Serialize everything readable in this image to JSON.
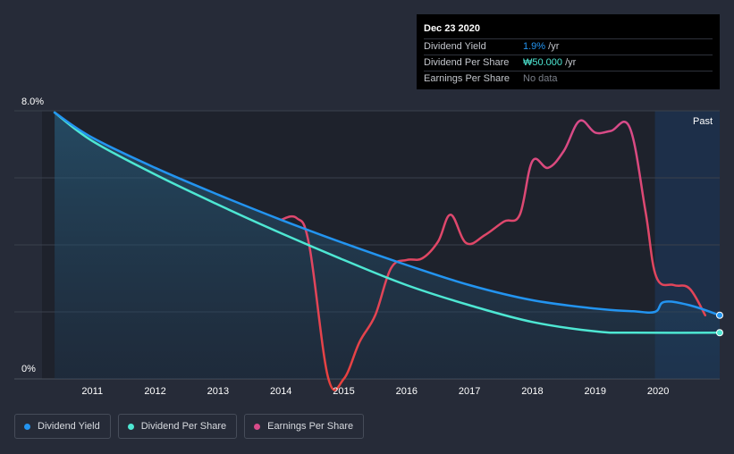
{
  "tooltip": {
    "date": "Dec 23 2020",
    "rows": [
      {
        "label": "Dividend Yield",
        "value": "1.9%",
        "unit": " /yr"
      },
      {
        "label": "Dividend Per Share",
        "value": "₩50.000",
        "unit": " /yr"
      },
      {
        "label": "Earnings Per Share",
        "value": "No data",
        "unit": ""
      }
    ]
  },
  "legend": [
    {
      "label": "Dividend Yield",
      "color": "#2394f0"
    },
    {
      "label": "Dividend Per Share",
      "color": "#4ee7d3"
    },
    {
      "label": "Earnings Per Share",
      "color": "#d84b8a"
    }
  ],
  "colors": {
    "background": "#262b38",
    "plot_dark": "#1e222c",
    "past_region": "#1d2f49",
    "grid": "#3a404c",
    "yield": "#2394f0",
    "dps": "#4ee7d3",
    "eps_low": "#e8413c",
    "eps_high": "#d84b8a"
  },
  "past_label": "Past",
  "chart_data": {
    "type": "line",
    "title": "",
    "xlabel": "",
    "ylabel": "",
    "ylim": [
      0,
      8
    ],
    "xlim": [
      2010.2,
      2020.98
    ],
    "y_tick_labels": [
      "8.0%",
      "0%"
    ],
    "x_ticks": [
      2011,
      2012,
      2013,
      2014,
      2015,
      2016,
      2017,
      2018,
      2019,
      2020
    ],
    "grid": true,
    "past_from": 2019.95,
    "series": [
      {
        "name": "Dividend Yield",
        "x": [
          2010.4,
          2011,
          2012,
          2013,
          2014,
          2015,
          2016,
          2017,
          2018,
          2019,
          2019.6,
          2019.95,
          2020.1,
          2020.5,
          2020.98
        ],
        "values": [
          7.95,
          7.2,
          6.3,
          5.5,
          4.75,
          4.05,
          3.4,
          2.8,
          2.35,
          2.1,
          2.02,
          2.0,
          2.3,
          2.2,
          1.9
        ]
      },
      {
        "name": "Dividend Per Share",
        "x": [
          2010.4,
          2011,
          2012,
          2013,
          2014,
          2015,
          2016,
          2017,
          2018,
          2019,
          2019.6,
          2020.98
        ],
        "values": [
          7.95,
          7.1,
          6.1,
          5.2,
          4.35,
          3.55,
          2.8,
          2.2,
          1.7,
          1.42,
          1.38,
          1.38
        ]
      },
      {
        "name": "Earnings Per Share",
        "x": [
          2014.0,
          2014.25,
          2014.45,
          2014.75,
          2015.0,
          2015.25,
          2015.5,
          2015.75,
          2016.0,
          2016.25,
          2016.5,
          2016.7,
          2016.95,
          2017.25,
          2017.55,
          2017.8,
          2018.0,
          2018.25,
          2018.5,
          2018.75,
          2019.0,
          2019.25,
          2019.55,
          2019.8,
          2019.97,
          2020.25,
          2020.5,
          2020.75
        ],
        "values": [
          4.75,
          4.8,
          4.0,
          0.05,
          0.0,
          1.1,
          1.9,
          3.3,
          3.55,
          3.6,
          4.1,
          4.9,
          4.05,
          4.3,
          4.7,
          4.9,
          6.5,
          6.3,
          6.8,
          7.7,
          7.35,
          7.4,
          7.5,
          5.0,
          3.05,
          2.8,
          2.7,
          1.9
        ]
      }
    ]
  }
}
